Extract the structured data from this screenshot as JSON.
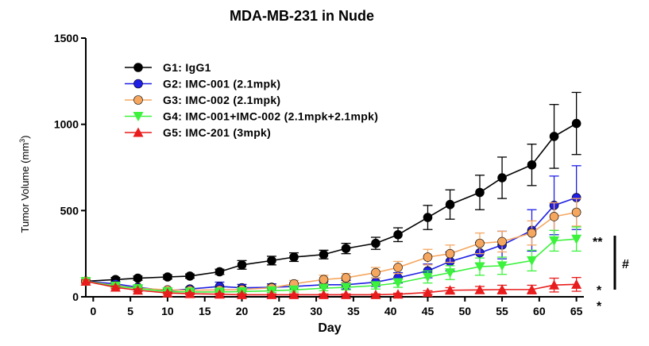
{
  "chart_data": {
    "type": "line",
    "title": "MDA-MB-231 in Nude",
    "xlabel": "Day",
    "ylabel_main": "Tumor Volume (mm",
    "ylabel_sup": "3",
    "ylabel_close": ")",
    "xlim": [
      -1,
      66
    ],
    "ylim": [
      0,
      1500
    ],
    "xticks": [
      0,
      5,
      10,
      15,
      20,
      25,
      30,
      35,
      40,
      45,
      50,
      55,
      60,
      65
    ],
    "yticks": [
      0,
      500,
      1000,
      1500
    ],
    "grid": false,
    "legend_position": "top-left",
    "x": [
      -1,
      3,
      6,
      10,
      13,
      17,
      20,
      24,
      27,
      31,
      34,
      38,
      41,
      45,
      48,
      52,
      55,
      59,
      62,
      65
    ],
    "series": [
      {
        "name": "G1: IgG1",
        "color": "#000000",
        "marker": "circle",
        "values": [
          90,
          100,
          108,
          115,
          120,
          145,
          185,
          210,
          230,
          245,
          280,
          310,
          360,
          460,
          535,
          605,
          690,
          765,
          930,
          1005
        ],
        "errors": [
          10,
          12,
          12,
          12,
          12,
          15,
          25,
          25,
          25,
          25,
          30,
          35,
          40,
          70,
          85,
          100,
          120,
          120,
          185,
          180
        ]
      },
      {
        "name": "G2: IMC-001 (2.1mpk)",
        "color": "#1f1fe6",
        "marker": "circle",
        "values": [
          90,
          75,
          55,
          35,
          45,
          60,
          52,
          55,
          60,
          70,
          70,
          85,
          110,
          150,
          205,
          255,
          300,
          385,
          530,
          575
        ],
        "errors": [
          8,
          10,
          10,
          8,
          10,
          25,
          20,
          20,
          20,
          20,
          25,
          25,
          30,
          40,
          55,
          60,
          80,
          120,
          170,
          185
        ]
      },
      {
        "name": "G3: IMC-002 (2.1mpk)",
        "color": "#f5a760",
        "marker": "circle",
        "values": [
          90,
          65,
          50,
          40,
          38,
          40,
          42,
          52,
          75,
          100,
          110,
          140,
          170,
          230,
          250,
          310,
          320,
          370,
          465,
          490
        ],
        "errors": [
          8,
          10,
          10,
          8,
          8,
          10,
          10,
          15,
          20,
          25,
          25,
          30,
          35,
          45,
          50,
          60,
          60,
          70,
          80,
          80
        ]
      },
      {
        "name": "G4: IMC-001+IMC-002 (2.1mpk+2.1mpk)",
        "color": "#3cf23c",
        "marker": "triangle-down",
        "values": [
          90,
          62,
          48,
          30,
          28,
          28,
          30,
          35,
          40,
          50,
          55,
          65,
          80,
          115,
          140,
          175,
          180,
          210,
          325,
          335
        ],
        "errors": [
          8,
          8,
          8,
          8,
          8,
          8,
          10,
          10,
          12,
          15,
          15,
          20,
          25,
          35,
          40,
          50,
          50,
          60,
          60,
          70
        ]
      },
      {
        "name": "G5: IMC-201 (3mpk)",
        "color": "#e81c1c",
        "marker": "triangle-up",
        "values": [
          90,
          55,
          38,
          22,
          18,
          15,
          12,
          12,
          12,
          12,
          12,
          12,
          15,
          25,
          38,
          40,
          42,
          42,
          68,
          72
        ],
        "errors": [
          8,
          8,
          8,
          6,
          6,
          5,
          5,
          5,
          5,
          5,
          5,
          5,
          6,
          10,
          15,
          20,
          25,
          25,
          40,
          40
        ]
      }
    ],
    "annotations": {
      "g4_mark": "**",
      "g5_mark": "*",
      "g2_mark": "*",
      "bracket_mark": "#"
    }
  }
}
